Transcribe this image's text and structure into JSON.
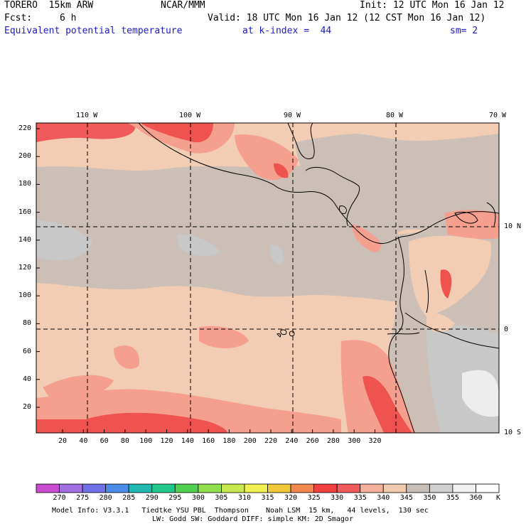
{
  "header": {
    "model": "TORERO  15km ARW",
    "org": "NCAR/MMM",
    "init": "Init: 12 UTC Mon 16 Jan 12",
    "fcst_label": "Fcst:",
    "fcst_value": "6 h",
    "valid": "Valid: 18 UTC Mon 16 Jan 12 (12 CST Mon 16 Jan 12)",
    "field": "Equivalent potential temperature",
    "level": "at k-index =  44",
    "smooth": "sm= 2"
  },
  "map": {
    "top_lon_labels": [
      "110 W",
      "100 W",
      "90 W",
      "80 W",
      "70 W"
    ],
    "right_lat_labels": [
      "10 N",
      "0",
      "10 S"
    ],
    "y_ticks": [
      "20",
      "40",
      "60",
      "80",
      "100",
      "120",
      "140",
      "160",
      "180",
      "200",
      "220"
    ],
    "x_ticks": [
      "20",
      "40",
      "60",
      "80",
      "100",
      "120",
      "140",
      "160",
      "180",
      "200",
      "220",
      "240",
      "260",
      "280",
      "300",
      "320"
    ]
  },
  "legend": {
    "values": [
      "270",
      "275",
      "280",
      "285",
      "290",
      "295",
      "300",
      "305",
      "310",
      "315",
      "320",
      "325",
      "330",
      "335",
      "340",
      "345",
      "350",
      "355",
      "360"
    ],
    "unit": "K",
    "colors": [
      "#c84bd0",
      "#a070e0",
      "#7070e8",
      "#4a8ce8",
      "#20b8b0",
      "#20c88c",
      "#50d050",
      "#90e050",
      "#c8e850",
      "#f0f050",
      "#f0c838",
      "#f08850",
      "#f04040",
      "#f05a5a",
      "#f3b09a",
      "#f0cbb0",
      "#c9bfb9",
      "#d0d0d0",
      "#f0f0f0"
    ],
    "map_colors": {
      "high_red": "#ef5350",
      "red": "#f5a08f",
      "light": "#f3cdb3",
      "tan": "#cbbfb7",
      "grey": "#c8c8c8",
      "white": "#ededed"
    }
  },
  "footer": {
    "line1": "Model Info: V3.3.1   Tiedtke YSU PBL  Thompson    Noah LSM  15 km,   44 levels,  130 sec",
    "line2": "LW: Godd SW: Goddard DIFF: simple KM: 2D Smagor"
  }
}
